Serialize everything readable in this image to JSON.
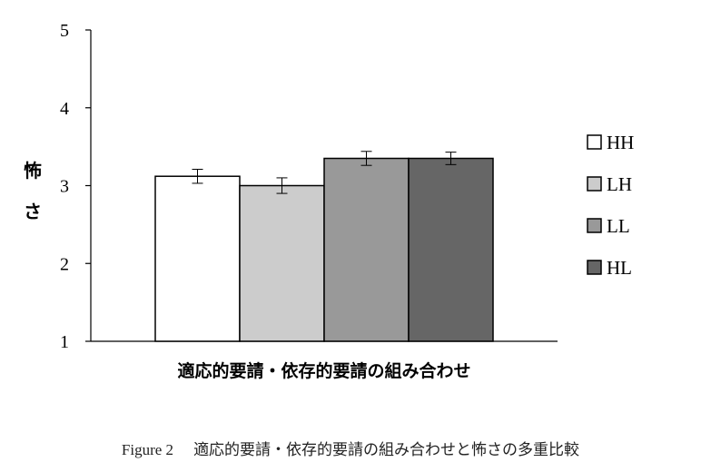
{
  "chart_data": {
    "type": "bar",
    "categories": [
      "HH",
      "LH",
      "LL",
      "HL"
    ],
    "values": [
      3.12,
      3.0,
      3.35,
      3.35
    ],
    "errors": [
      0.09,
      0.1,
      0.09,
      0.08
    ],
    "colors": [
      "#ffffff",
      "#cccccc",
      "#999999",
      "#666666"
    ],
    "xlabel": "適応的要請・依存的要請の組み合わせ",
    "ylabel": "怖さ",
    "ylim": [
      1,
      5
    ],
    "yticks": [
      "1",
      "2",
      "3",
      "4",
      "5"
    ],
    "grid": false,
    "legend": {
      "placement": "right",
      "items": [
        "HH",
        "LH",
        "LL",
        "HL"
      ]
    }
  },
  "caption": {
    "label": "Figure 2",
    "text": "適応的要請・依存的要請の組み合わせと怖さの多重比較"
  }
}
